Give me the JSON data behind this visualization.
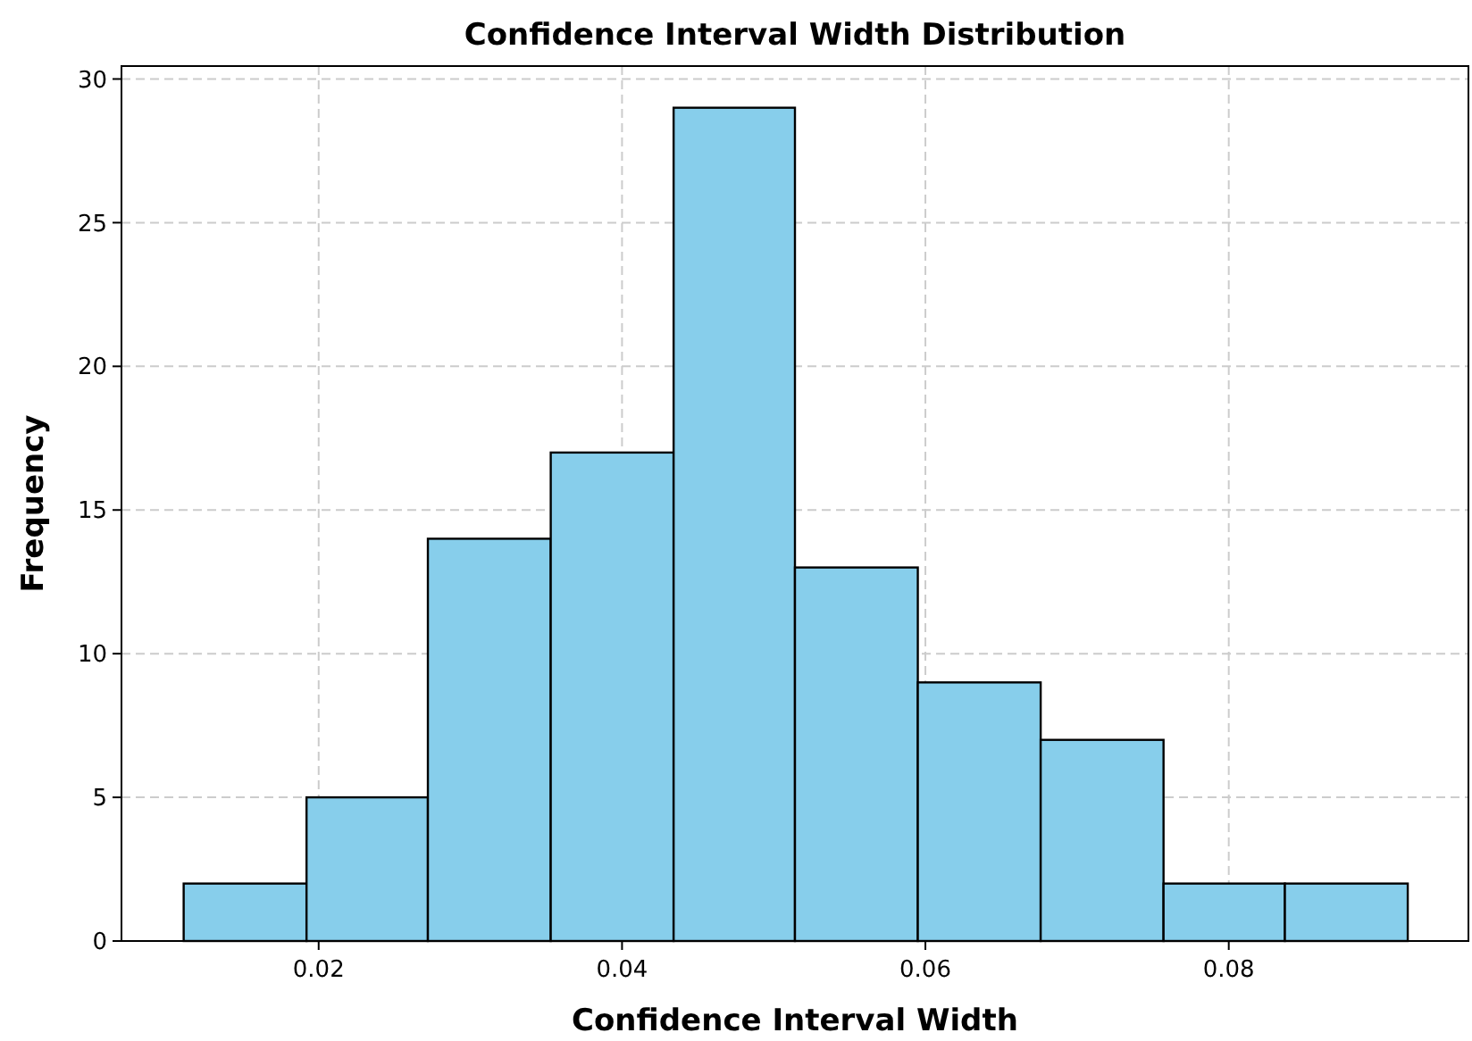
{
  "chart_data": {
    "type": "histogram",
    "title": "Confidence Interval Width Distribution",
    "xlabel": "Confidence Interval Width",
    "ylabel": "Frequency",
    "bins": [
      0.0111,
      0.0192,
      0.0272,
      0.0353,
      0.0434,
      0.0514,
      0.0595,
      0.0676,
      0.0757,
      0.0837,
      0.0918
    ],
    "values": [
      2,
      5,
      14,
      17,
      29,
      13,
      9,
      7,
      2,
      2
    ],
    "color": "#87ceeb",
    "xlim": [
      0.007,
      0.0958
    ],
    "xticks": [
      {
        "value": 0.02,
        "label": "0.02"
      },
      {
        "value": 0.04,
        "label": "0.04"
      },
      {
        "value": 0.06,
        "label": "0.06"
      },
      {
        "value": 0.08,
        "label": "0.08"
      }
    ],
    "ylim": [
      0,
      30.45
    ],
    "yticks": [
      0,
      5,
      10,
      15,
      20,
      25,
      30
    ],
    "grid": true,
    "line_style": "dashed"
  }
}
